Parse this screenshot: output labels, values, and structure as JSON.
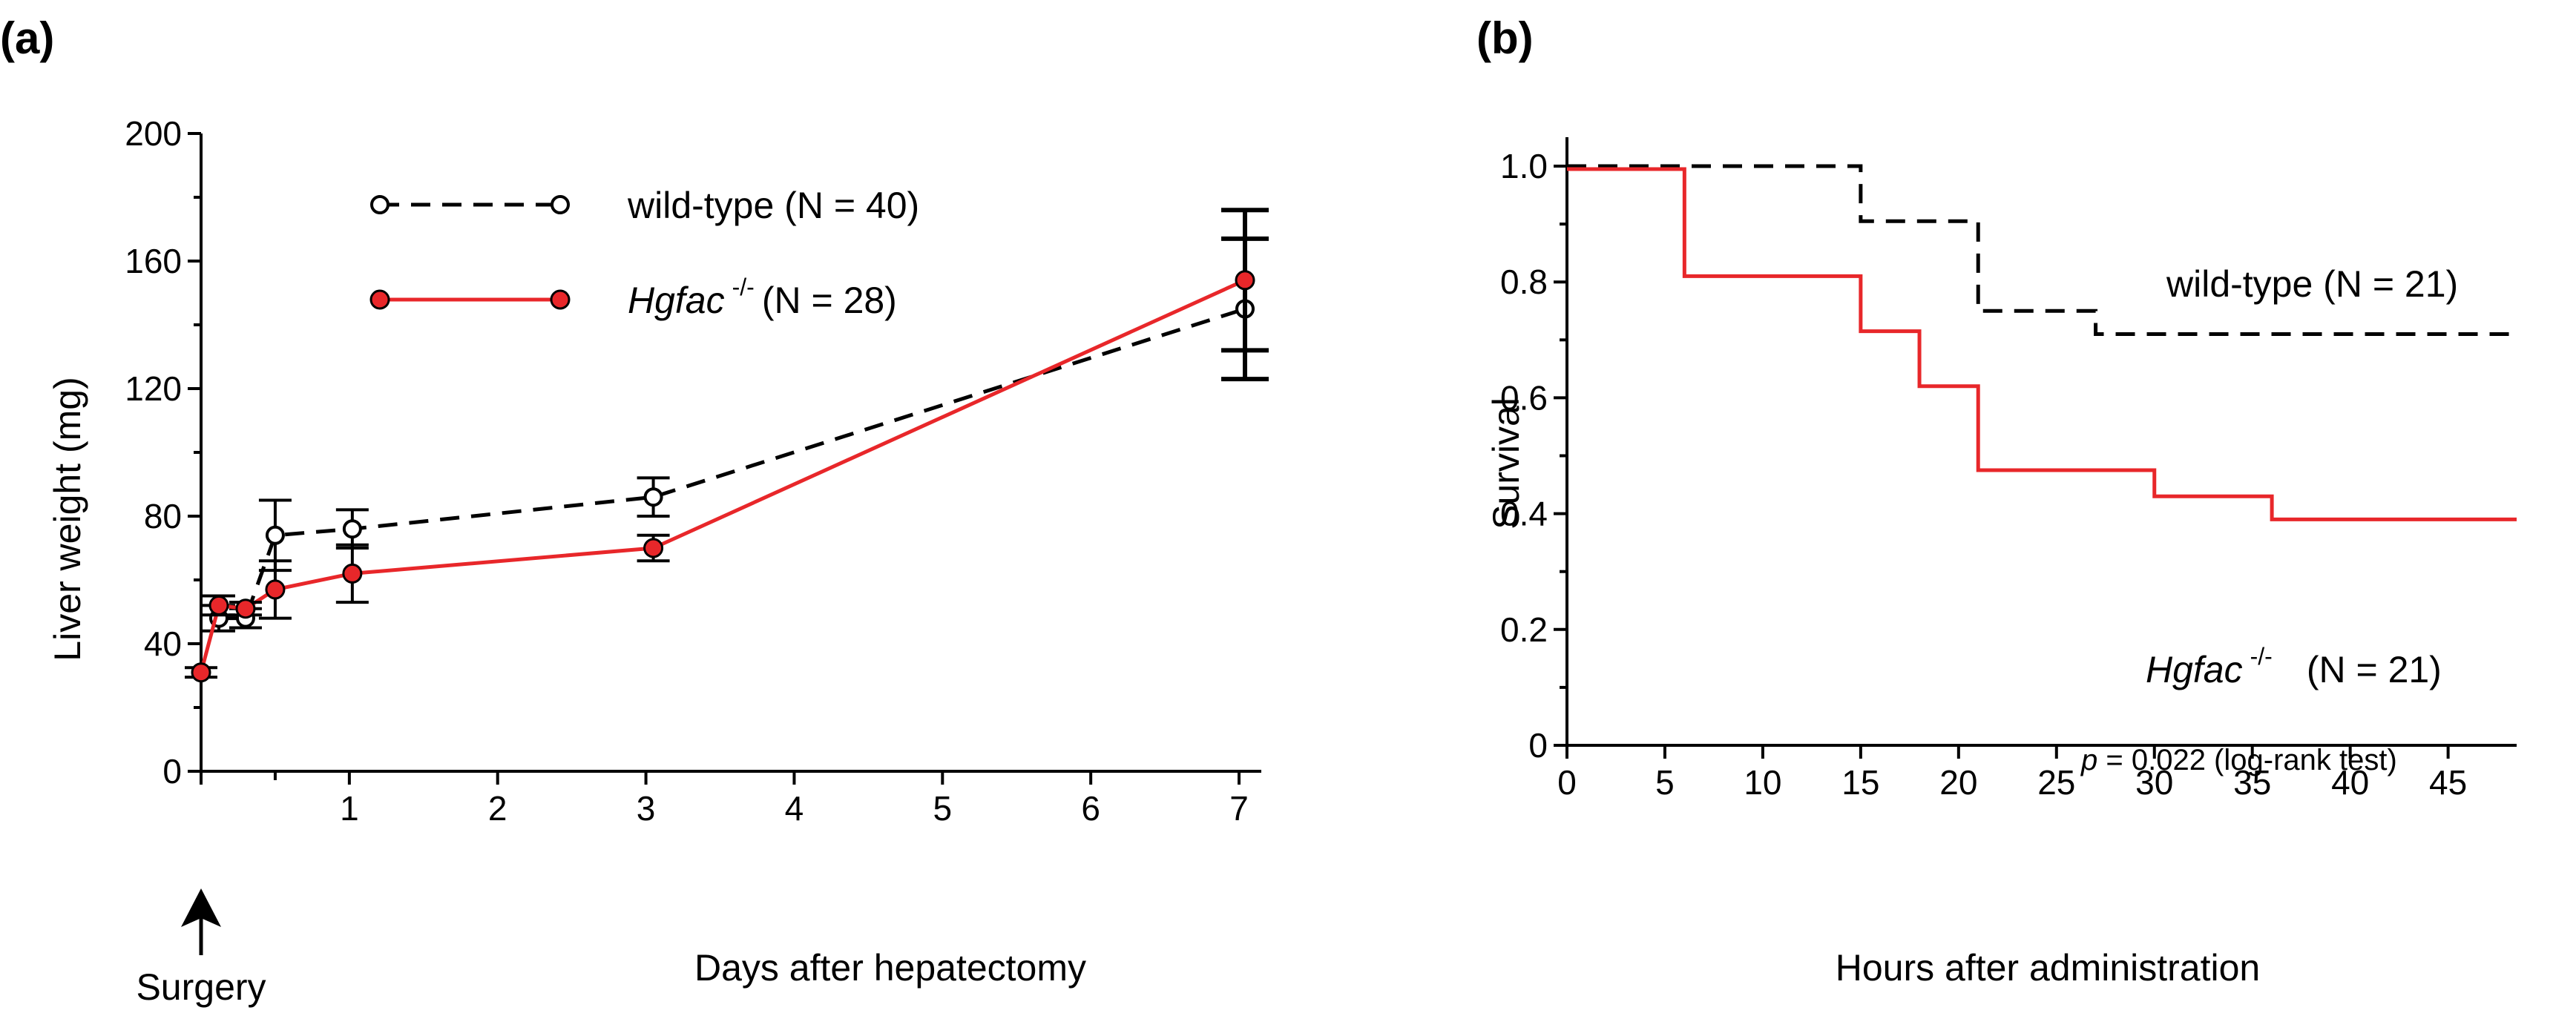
{
  "chart_data": [
    {
      "panel": "(a)",
      "type": "line",
      "xlabel": "Days after hepatectomy",
      "ylabel": "Liver weight (mg)",
      "xlim": [
        0,
        7.15
      ],
      "ylim": [
        0,
        200
      ],
      "x_ticks": [
        0,
        1,
        2,
        3,
        4,
        5,
        6,
        7
      ],
      "y_ticks": [
        0,
        40,
        80,
        120,
        160,
        200
      ],
      "grid": false,
      "legend_position": "top-center",
      "annotation": "Surgery",
      "series": [
        {
          "name": "wild-type (N = 40)",
          "style": "dashed",
          "marker": "open-circle",
          "color": "#000000",
          "x": [
            0.12,
            0.3,
            0.5,
            1.02,
            3.05,
            7.04
          ],
          "y": [
            48,
            48,
            74,
            76,
            86,
            145
          ],
          "err": [
            4,
            3,
            11,
            6,
            6,
            22
          ]
        },
        {
          "name_main": "Hgfac",
          "name_sup": "-/-",
          "name_tail": "(N = 28)",
          "style": "solid",
          "marker": "filled-circle",
          "color": "#e8272a",
          "x": [
            0,
            0.12,
            0.3,
            0.5,
            1.02,
            3.05,
            7.04
          ],
          "y": [
            31,
            52,
            51,
            57,
            62,
            70,
            154
          ],
          "err": [
            1.5,
            3,
            2,
            9,
            9,
            4,
            22
          ]
        }
      ]
    },
    {
      "panel": "(b)",
      "type": "line",
      "subtype": "step",
      "xlabel": "Hours after administration",
      "ylabel": "Survival",
      "xlim": [
        0,
        48.5
      ],
      "ylim": [
        0,
        1.05
      ],
      "x_ticks": [
        0,
        5,
        10,
        15,
        20,
        25,
        30,
        35,
        40,
        45
      ],
      "y_ticks": [
        0,
        0.2,
        0.4,
        0.6,
        0.8,
        1.0
      ],
      "y_tick_labels": [
        "0",
        "0.2",
        "0.4",
        "0.6",
        "0.8",
        "1.0"
      ],
      "grid": false,
      "series": [
        {
          "name": "wild-type (N = 21)",
          "style": "dashed",
          "color": "#000000",
          "x": [
            0,
            15,
            21,
            27,
            48.5
          ],
          "y": [
            1.0,
            0.905,
            0.75,
            0.71,
            0.71
          ]
        },
        {
          "name_main": "Hgfac",
          "name_sup": "-/-",
          "name_tail": "(N = 21)",
          "style": "solid",
          "color": "#e8272a",
          "x": [
            0,
            6,
            15,
            18,
            21,
            30,
            36,
            48.5
          ],
          "y": [
            0.995,
            0.81,
            0.715,
            0.62,
            0.475,
            0.43,
            0.39,
            0.39
          ]
        }
      ],
      "annotation_p": "p",
      "annotation_rest": " = 0.022 (log-rank test)"
    }
  ]
}
